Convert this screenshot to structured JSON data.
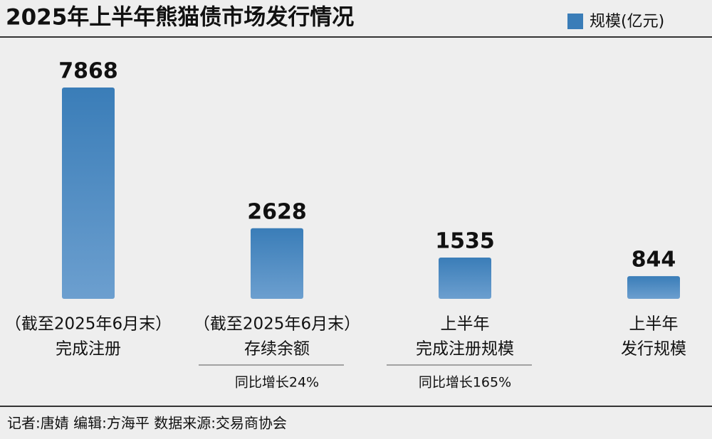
{
  "chart_data": {
    "type": "bar",
    "title": "2025年上半年熊猫债市场发行情况",
    "legend": "规模(亿元)",
    "categories": [
      [
        "（截至2025年6月末）",
        "完成注册"
      ],
      [
        "（截至2025年6月末）",
        "存续余额"
      ],
      [
        "上半年",
        "完成注册规模"
      ],
      [
        "上半年",
        "发行规模"
      ]
    ],
    "values": [
      7868,
      2628,
      1535,
      844
    ],
    "notes": [
      null,
      "同比增长24%",
      "同比增长165%",
      null
    ],
    "color": "#3a7db8",
    "source": "记者:唐婧  编辑:方海平  数据来源:交易商协会"
  }
}
